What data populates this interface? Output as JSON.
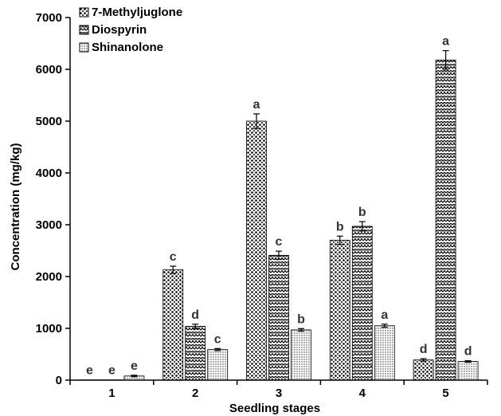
{
  "chart_data": {
    "type": "bar",
    "xlabel": "Seedling stages",
    "ylabel": "Concentration (mg/kg)",
    "categories": [
      "1",
      "2",
      "3",
      "4",
      "5"
    ],
    "ylim": [
      0,
      7000
    ],
    "yticks": [
      0,
      1000,
      2000,
      3000,
      4000,
      5000,
      6000,
      7000
    ],
    "grid": false,
    "legend": "top-left",
    "series": [
      {
        "name": "7-Methyljuglone",
        "pattern": "dots",
        "values": [
          5,
          2130,
          5000,
          2700,
          390
        ],
        "errors": [
          0,
          70,
          140,
          80,
          25
        ],
        "labels": [
          "e",
          "c",
          "a",
          "b",
          "d"
        ]
      },
      {
        "name": "Diospyrin",
        "pattern": "zigzag",
        "values": [
          5,
          1040,
          2410,
          2970,
          6180
        ],
        "errors": [
          0,
          40,
          80,
          90,
          180
        ],
        "labels": [
          "e",
          "d",
          "c",
          "b",
          "a"
        ]
      },
      {
        "name": "Shinanolone",
        "pattern": "fine-dots",
        "values": [
          80,
          590,
          970,
          1050,
          360
        ],
        "errors": [
          15,
          20,
          25,
          30,
          15
        ],
        "labels": [
          "e",
          "c",
          "b",
          "a",
          "d"
        ]
      }
    ]
  }
}
